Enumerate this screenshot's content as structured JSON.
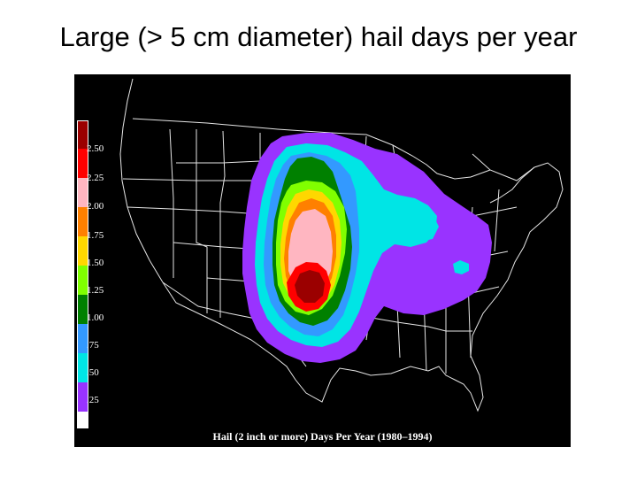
{
  "slide": {
    "title": "Large (> 5 cm diameter) hail days per year"
  },
  "map": {
    "caption": "Hail (2 inch or more) Days Per Year (1980–1994)",
    "background_color": "#000000",
    "boundary_color": "#ffffff",
    "legend": {
      "bottom_swatch_color": "#ffffff",
      "classes": [
        {
          "label": "2.50",
          "color": "#9b0000"
        },
        {
          "label": "2.25",
          "color": "#ff0000"
        },
        {
          "label": "2.00",
          "color": "#ffb6c1"
        },
        {
          "label": "1.75",
          "color": "#ff8000"
        },
        {
          "label": "1.50",
          "color": "#ffd700"
        },
        {
          "label": "1.25",
          "color": "#80ff00"
        },
        {
          "label": "1.00",
          "color": "#008000"
        },
        {
          "label": ".75",
          "color": "#3399ff"
        },
        {
          "label": ".50",
          "color": "#00e5e5"
        },
        {
          "label": ".25",
          "color": "#9933ff"
        }
      ]
    }
  }
}
